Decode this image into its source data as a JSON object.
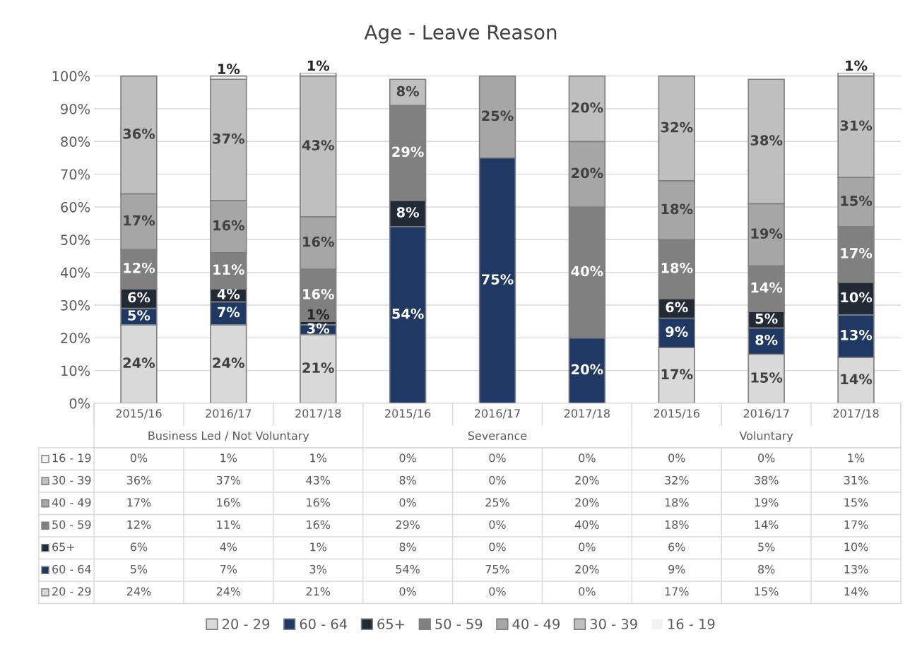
{
  "chart_data": {
    "type": "bar",
    "title": "Age - Leave Reason",
    "stacked": true,
    "categories": [
      "2015/16",
      "2016/17",
      "2017/18",
      "2015/16",
      "2016/17",
      "2017/18",
      "2015/16",
      "2016/17",
      "2017/18"
    ],
    "annotations": [
      "Business Led / Not Voluntary",
      "Severance",
      "Voluntary"
    ],
    "series": [
      {
        "name": "20 - 29",
        "color": "#d9d9d9",
        "values": [
          24,
          24,
          21,
          0,
          0,
          0,
          17,
          15,
          14
        ],
        "value_labels": [
          "24%",
          "24%",
          "21%",
          "0%",
          "0%",
          "0%",
          "17%",
          "15%",
          "14%"
        ]
      },
      {
        "name": "60 - 64",
        "color": "#1f3864",
        "values": [
          5,
          7,
          3,
          54,
          75,
          20,
          9,
          8,
          13
        ],
        "value_labels": [
          "5%",
          "7%",
          "3%",
          "54%",
          "75%",
          "20%",
          "9%",
          "8%",
          "13%"
        ]
      },
      {
        "name": "65+",
        "color": "#222a35",
        "values": [
          6,
          4,
          1,
          8,
          0,
          0,
          6,
          5,
          10
        ],
        "value_labels": [
          "6%",
          "4%",
          "1%",
          "8%",
          "0%",
          "0%",
          "6%",
          "5%",
          "10%"
        ]
      },
      {
        "name": "50 - 59",
        "color": "#808080",
        "values": [
          12,
          11,
          16,
          29,
          0,
          40,
          18,
          14,
          17
        ],
        "value_labels": [
          "12%",
          "11%",
          "16%",
          "29%",
          "0%",
          "40%",
          "18%",
          "14%",
          "17%"
        ]
      },
      {
        "name": "40 - 49",
        "color": "#a6a6a6",
        "values": [
          17,
          16,
          16,
          0,
          25,
          20,
          18,
          19,
          15
        ],
        "value_labels": [
          "17%",
          "16%",
          "16%",
          "0%",
          "25%",
          "20%",
          "18%",
          "19%",
          "15%"
        ]
      },
      {
        "name": "30 - 39",
        "color": "#bfbfbf",
        "values": [
          36,
          37,
          43,
          8,
          0,
          20,
          32,
          38,
          31
        ],
        "value_labels": [
          "36%",
          "37%",
          "43%",
          "8%",
          "0%",
          "20%",
          "32%",
          "38%",
          "31%"
        ]
      },
      {
        "name": "16 - 19",
        "color": "#f2f2f2",
        "values": [
          0,
          1,
          1,
          0,
          0,
          0,
          0,
          0,
          1
        ],
        "value_labels": [
          "0%",
          "1%",
          "1%",
          "0%",
          "0%",
          "0%",
          "0%",
          "0%",
          "1%"
        ]
      }
    ],
    "ylim": [
      0,
      101
    ],
    "yticks": [
      {
        "value": 0,
        "label": "0%"
      },
      {
        "value": 10,
        "label": "10%"
      },
      {
        "value": 20,
        "label": "20%"
      },
      {
        "value": 30,
        "label": "30%"
      },
      {
        "value": 40,
        "label": "40%"
      },
      {
        "value": 50,
        "label": "50%"
      },
      {
        "value": 60,
        "label": "60%"
      },
      {
        "value": 70,
        "label": "70%"
      },
      {
        "value": 80,
        "label": "80%"
      },
      {
        "value": 90,
        "label": "90%"
      },
      {
        "value": 100,
        "label": "100%"
      }
    ],
    "grid": "y",
    "legend": "bottom"
  }
}
